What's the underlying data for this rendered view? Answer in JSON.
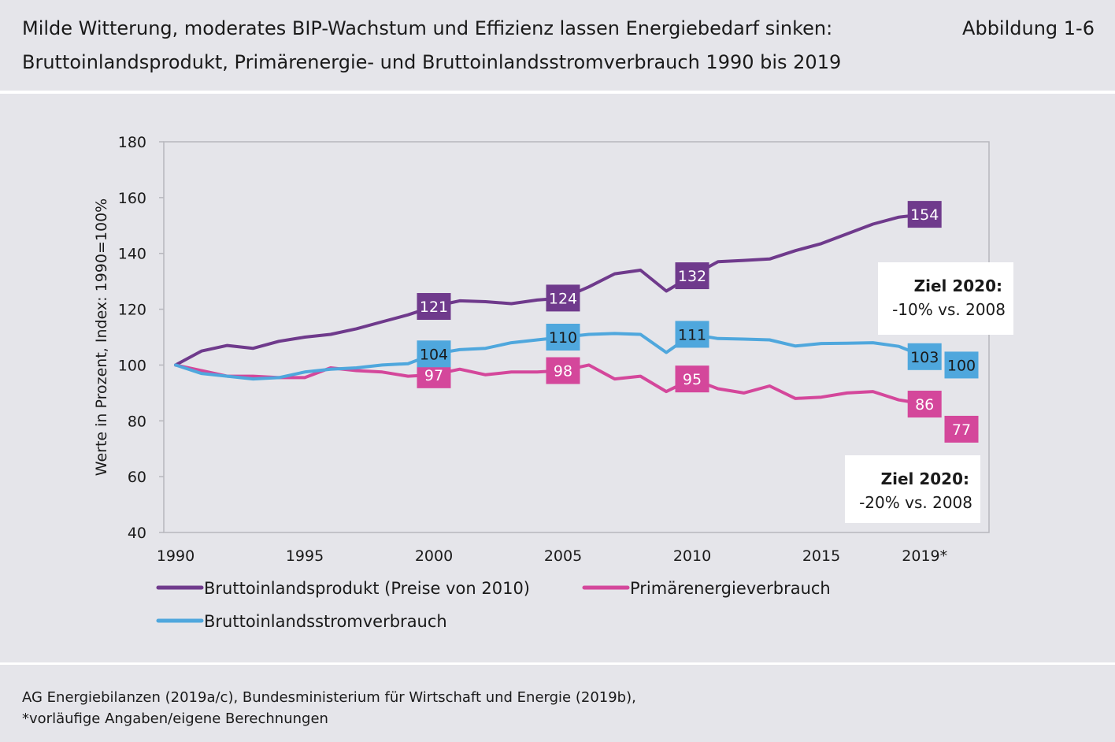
{
  "header": {
    "title": "Milde Witterung, moderates BIP-Wachstum und Effizienz lassen Energiebedarf sinken:",
    "subtitle": "Bruttoinlandsprodukt, Primärenergie- und Bruttoinlandsstromverbrauch 1990 bis 2019",
    "figure_label": "Abbildung 1-6"
  },
  "footer": {
    "line1": "AG Energiebilanzen (2019a/c), Bundesministerium für Wirtschaft und Energie (2019b),",
    "line2": "*vorläufige Angaben/eigene Berechnungen"
  },
  "chart_data": {
    "type": "line",
    "ylabel": "Werte in Prozent, Index: 1990=100%",
    "ylim": [
      40,
      180
    ],
    "yticks": [
      40,
      60,
      80,
      100,
      120,
      140,
      160,
      180
    ],
    "xlim": [
      1990,
      2020
    ],
    "xticks": [
      {
        "value": 1990,
        "label": "1990"
      },
      {
        "value": 1995,
        "label": "1995"
      },
      {
        "value": 2000,
        "label": "2000"
      },
      {
        "value": 2005,
        "label": "2005"
      },
      {
        "value": 2010,
        "label": "2010"
      },
      {
        "value": 2015,
        "label": "2015"
      },
      {
        "value": 2019,
        "label": "2019*"
      }
    ],
    "grid": false,
    "legend_position": "bottom",
    "series": [
      {
        "name": "Bruttoinlandsprodukt (Preise von 2010)",
        "color": "#6f3a8c",
        "x": [
          1990,
          1991,
          1992,
          1993,
          1994,
          1995,
          1996,
          1997,
          1998,
          1999,
          2000,
          2001,
          2002,
          2003,
          2004,
          2005,
          2006,
          2007,
          2008,
          2009,
          2010,
          2011,
          2012,
          2013,
          2014,
          2015,
          2016,
          2017,
          2018,
          2019
        ],
        "y": [
          100,
          105,
          107,
          106,
          108.5,
          110,
          111,
          113,
          115.5,
          118,
          121,
          123,
          122.7,
          122,
          123.3,
          124,
          128,
          132.7,
          134,
          126.5,
          132,
          137,
          137.5,
          138,
          141,
          143.5,
          147,
          150.5,
          153,
          154
        ],
        "labels": [
          {
            "x": 2000,
            "text": "121"
          },
          {
            "x": 2005,
            "text": "124"
          },
          {
            "x": 2010,
            "text": "132"
          },
          {
            "x": 2019,
            "text": "154"
          }
        ]
      },
      {
        "name": "Primärenergieverbrauch",
        "color": "#d4479b",
        "x": [
          1990,
          1991,
          1992,
          1993,
          1994,
          1995,
          1996,
          1997,
          1998,
          1999,
          2000,
          2001,
          2002,
          2003,
          2004,
          2005,
          2006,
          2007,
          2008,
          2009,
          2010,
          2011,
          2012,
          2013,
          2014,
          2015,
          2016,
          2017,
          2018,
          2019
        ],
        "y": [
          100,
          98,
          96,
          96,
          95.5,
          95.5,
          99,
          98,
          97.5,
          96,
          96.5,
          98.5,
          96.5,
          97.5,
          97.5,
          98,
          100,
          95,
          96,
          90.5,
          95,
          91.5,
          90,
          92.5,
          88,
          88.5,
          90,
          90.5,
          87.5,
          86
        ],
        "labels": [
          {
            "x": 2000,
            "text": "97"
          },
          {
            "x": 2005,
            "text": "98"
          },
          {
            "x": 2010,
            "text": "95"
          },
          {
            "x": 2019,
            "text": "86"
          }
        ],
        "target": {
          "x": 2020,
          "text": "77"
        }
      },
      {
        "name": "Bruttoinlandsstromverbrauch",
        "color": "#4fa7dd",
        "x": [
          1990,
          1991,
          1992,
          1993,
          1994,
          1995,
          1996,
          1997,
          1998,
          1999,
          2000,
          2001,
          2002,
          2003,
          2004,
          2005,
          2006,
          2007,
          2008,
          2009,
          2010,
          2011,
          2012,
          2013,
          2014,
          2015,
          2016,
          2017,
          2018,
          2019
        ],
        "y": [
          100,
          97,
          96,
          95,
          95.5,
          97.5,
          98.5,
          99,
          100,
          100.5,
          104,
          105.5,
          106,
          108,
          109,
          110,
          111,
          111.3,
          111,
          104.5,
          111,
          109.5,
          109.3,
          109,
          106.8,
          107.7,
          107.8,
          108,
          106.7,
          103
        ],
        "labels": [
          {
            "x": 2000,
            "text": "104"
          },
          {
            "x": 2005,
            "text": "110"
          },
          {
            "x": 2010,
            "text": "111"
          },
          {
            "x": 2019,
            "text": "103"
          }
        ],
        "target": {
          "x": 2020,
          "text": "100"
        }
      }
    ],
    "annotations": [
      {
        "title": "Ziel 2020:",
        "text": "-10% vs. 2008"
      },
      {
        "title": "Ziel 2020:",
        "text": "-20% vs. 2008"
      }
    ]
  }
}
